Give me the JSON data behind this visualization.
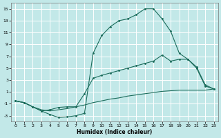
{
  "xlabel": "Humidex (Indice chaleur)",
  "bg_color": "#c2e8e8",
  "grid_color": "#ffffff",
  "line_color": "#1a6b5a",
  "xlim": [
    -0.5,
    23.5
  ],
  "ylim": [
    -4.0,
    16.0
  ],
  "xticks": [
    0,
    1,
    2,
    3,
    4,
    5,
    6,
    7,
    8,
    9,
    10,
    11,
    12,
    13,
    14,
    15,
    16,
    17,
    18,
    19,
    20,
    21,
    22,
    23
  ],
  "yticks": [
    -3,
    -1,
    1,
    3,
    5,
    7,
    9,
    11,
    13,
    15
  ],
  "series": {
    "line1_x": [
      0,
      1,
      2,
      3,
      4,
      5,
      6,
      7,
      8,
      9,
      10,
      11,
      12,
      13,
      14,
      15,
      16,
      17,
      18,
      19,
      20,
      21,
      22,
      23
    ],
    "line1_y": [
      -0.5,
      -0.8,
      -1.5,
      -2.2,
      -2.8,
      -3.3,
      -3.2,
      -3.0,
      -2.6,
      7.5,
      10.5,
      12.0,
      13.0,
      13.3,
      14.0,
      15.0,
      15.0,
      13.3,
      11.2,
      7.5,
      6.5,
      5.0,
      2.0,
      1.5
    ],
    "line2_x": [
      0,
      1,
      2,
      3,
      4,
      5,
      6,
      7,
      8,
      9,
      10,
      11,
      12,
      13,
      14,
      15,
      16,
      17,
      18,
      19,
      20,
      21,
      22,
      23
    ],
    "line2_y": [
      -0.5,
      -0.8,
      -1.5,
      -2.2,
      -2.0,
      -1.6,
      -1.5,
      -1.5,
      0.7,
      3.3,
      3.8,
      4.2,
      4.6,
      5.0,
      5.4,
      5.8,
      6.2,
      7.2,
      6.2,
      6.5,
      6.5,
      5.2,
      2.2,
      1.5
    ],
    "line3_x": [
      0,
      1,
      2,
      3,
      4,
      5,
      6,
      7,
      8,
      9,
      10,
      11,
      12,
      13,
      14,
      15,
      16,
      17,
      18,
      19,
      20,
      21,
      22,
      23
    ],
    "line3_y": [
      -0.5,
      -0.8,
      -1.5,
      -2.0,
      -2.2,
      -2.0,
      -1.8,
      -1.5,
      -1.2,
      -0.8,
      -0.5,
      -0.2,
      0.0,
      0.3,
      0.5,
      0.7,
      0.9,
      1.1,
      1.2,
      1.3,
      1.3,
      1.3,
      1.3,
      1.5
    ]
  }
}
